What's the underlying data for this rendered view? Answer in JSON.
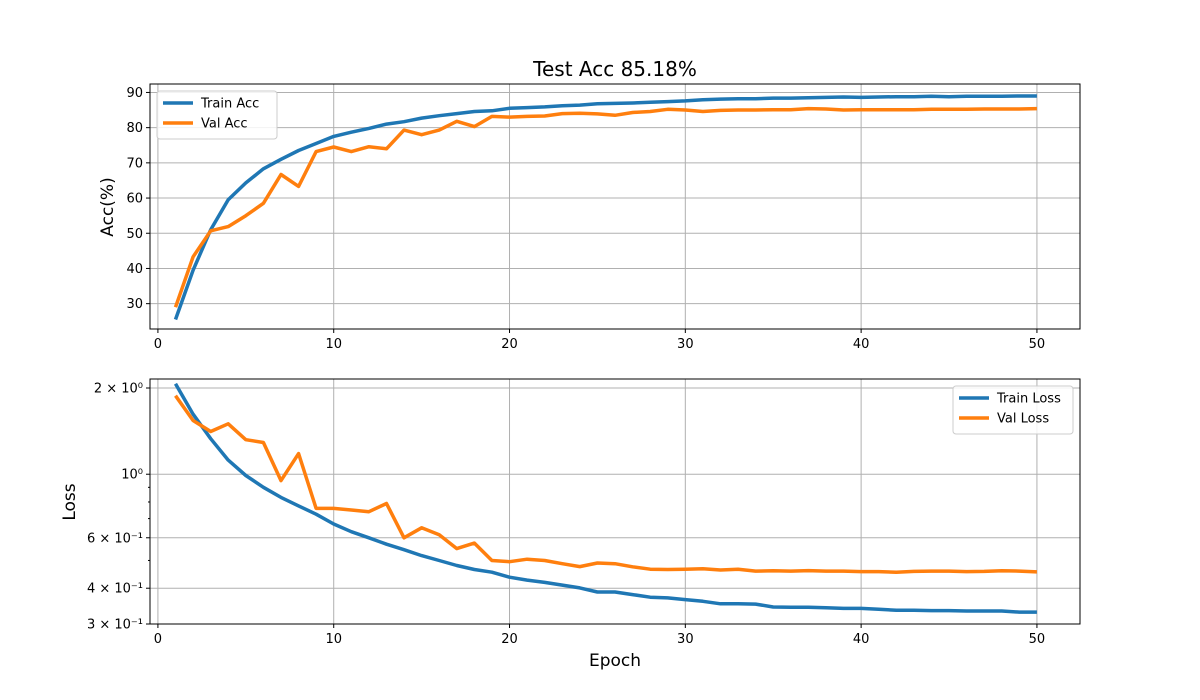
{
  "chart_data": [
    {
      "type": "line",
      "title": "Test Acc 85.18%",
      "xlabel": "",
      "ylabel": "Acc(%)",
      "xlim": [
        -0.45,
        52.45
      ],
      "ylim": [
        22.8,
        92.4
      ],
      "xticks": [
        0,
        10,
        20,
        30,
        40,
        50
      ],
      "xtick_labels": [
        "0",
        "10",
        "20",
        "30",
        "40",
        "50"
      ],
      "yticks": [
        30,
        40,
        50,
        60,
        70,
        80,
        90
      ],
      "ytick_labels": [
        "30",
        "40",
        "50",
        "60",
        "70",
        "80",
        "90"
      ],
      "yscale": "linear",
      "grid": true,
      "legend": "upper left",
      "x": [
        1,
        2,
        3,
        4,
        5,
        6,
        7,
        8,
        9,
        10,
        11,
        12,
        13,
        14,
        15,
        16,
        17,
        18,
        19,
        20,
        21,
        22,
        23,
        24,
        25,
        26,
        27,
        28,
        29,
        30,
        31,
        32,
        33,
        34,
        35,
        36,
        37,
        38,
        39,
        40,
        41,
        42,
        43,
        44,
        45,
        46,
        47,
        48,
        49,
        50
      ],
      "series": [
        {
          "name": "Train Acc",
          "color": "#1f77b4",
          "values": [
            25.5,
            39.5,
            51.0,
            59.5,
            64.3,
            68.3,
            71.0,
            73.5,
            75.5,
            77.5,
            78.7,
            79.8,
            81.0,
            81.7,
            82.7,
            83.4,
            84.0,
            84.6,
            84.8,
            85.5,
            85.7,
            85.9,
            86.2,
            86.4,
            86.8,
            86.9,
            87.0,
            87.2,
            87.4,
            87.6,
            87.9,
            88.1,
            88.2,
            88.2,
            88.4,
            88.4,
            88.5,
            88.6,
            88.7,
            88.6,
            88.7,
            88.8,
            88.8,
            88.9,
            88.8,
            88.9,
            88.9,
            88.9,
            89.0,
            89.0
          ]
        },
        {
          "name": "Val Acc",
          "color": "#ff7f0e",
          "values": [
            29.0,
            43.3,
            50.7,
            51.9,
            55.0,
            58.5,
            66.7,
            63.3,
            73.2,
            74.5,
            73.2,
            74.6,
            74.0,
            79.3,
            78.0,
            79.3,
            81.8,
            80.3,
            83.2,
            83.0,
            83.2,
            83.3,
            84.0,
            84.1,
            83.9,
            83.5,
            84.3,
            84.6,
            85.2,
            85.0,
            84.6,
            84.9,
            85.0,
            85.0,
            85.1,
            85.1,
            85.4,
            85.3,
            85.0,
            85.1,
            85.1,
            85.1,
            85.1,
            85.2,
            85.2,
            85.2,
            85.3,
            85.3,
            85.3,
            85.4
          ]
        }
      ]
    },
    {
      "type": "line",
      "title": "",
      "xlabel": "Epoch",
      "ylabel": "Loss",
      "xlim": [
        -0.45,
        52.45
      ],
      "ylim": [
        0.3,
        2.15
      ],
      "xticks": [
        0,
        10,
        20,
        30,
        40,
        50
      ],
      "xtick_labels": [
        "0",
        "10",
        "20",
        "30",
        "40",
        "50"
      ],
      "yticks": [
        2,
        1,
        0.6,
        0.4,
        0.3
      ],
      "ytick_labels": [
        "2 × 10⁰",
        "10⁰",
        "6 × 10⁻¹",
        "4 × 10⁻¹",
        "3 × 10⁻¹"
      ],
      "yscale": "log",
      "grid": true,
      "legend": "upper right",
      "x": [
        1,
        2,
        3,
        4,
        5,
        6,
        7,
        8,
        9,
        10,
        11,
        12,
        13,
        14,
        15,
        16,
        17,
        18,
        19,
        20,
        21,
        22,
        23,
        24,
        25,
        26,
        27,
        28,
        29,
        30,
        31,
        32,
        33,
        34,
        35,
        36,
        37,
        38,
        39,
        40,
        41,
        42,
        43,
        44,
        45,
        46,
        47,
        48,
        49,
        50
      ],
      "series": [
        {
          "name": "Train Loss",
          "color": "#1f77b4",
          "values": [
            2.07,
            1.62,
            1.33,
            1.12,
            0.99,
            0.9,
            0.83,
            0.775,
            0.725,
            0.67,
            0.63,
            0.6,
            0.57,
            0.545,
            0.52,
            0.5,
            0.48,
            0.465,
            0.455,
            0.437,
            0.427,
            0.419,
            0.41,
            0.401,
            0.388,
            0.388,
            0.38,
            0.372,
            0.37,
            0.365,
            0.36,
            0.353,
            0.353,
            0.352,
            0.344,
            0.343,
            0.343,
            0.342,
            0.34,
            0.34,
            0.338,
            0.335,
            0.335,
            0.334,
            0.334,
            0.333,
            0.333,
            0.333,
            0.33,
            0.33
          ]
        },
        {
          "name": "Val Loss",
          "color": "#ff7f0e",
          "values": [
            1.88,
            1.54,
            1.41,
            1.5,
            1.32,
            1.29,
            0.95,
            1.18,
            0.76,
            0.76,
            0.75,
            0.74,
            0.79,
            0.6,
            0.65,
            0.615,
            0.55,
            0.575,
            0.5,
            0.495,
            0.505,
            0.5,
            0.487,
            0.476,
            0.49,
            0.487,
            0.475,
            0.466,
            0.465,
            0.466,
            0.468,
            0.463,
            0.466,
            0.459,
            0.46,
            0.459,
            0.461,
            0.459,
            0.459,
            0.457,
            0.457,
            0.455,
            0.458,
            0.459,
            0.459,
            0.457,
            0.458,
            0.46,
            0.459,
            0.456
          ]
        }
      ]
    }
  ]
}
